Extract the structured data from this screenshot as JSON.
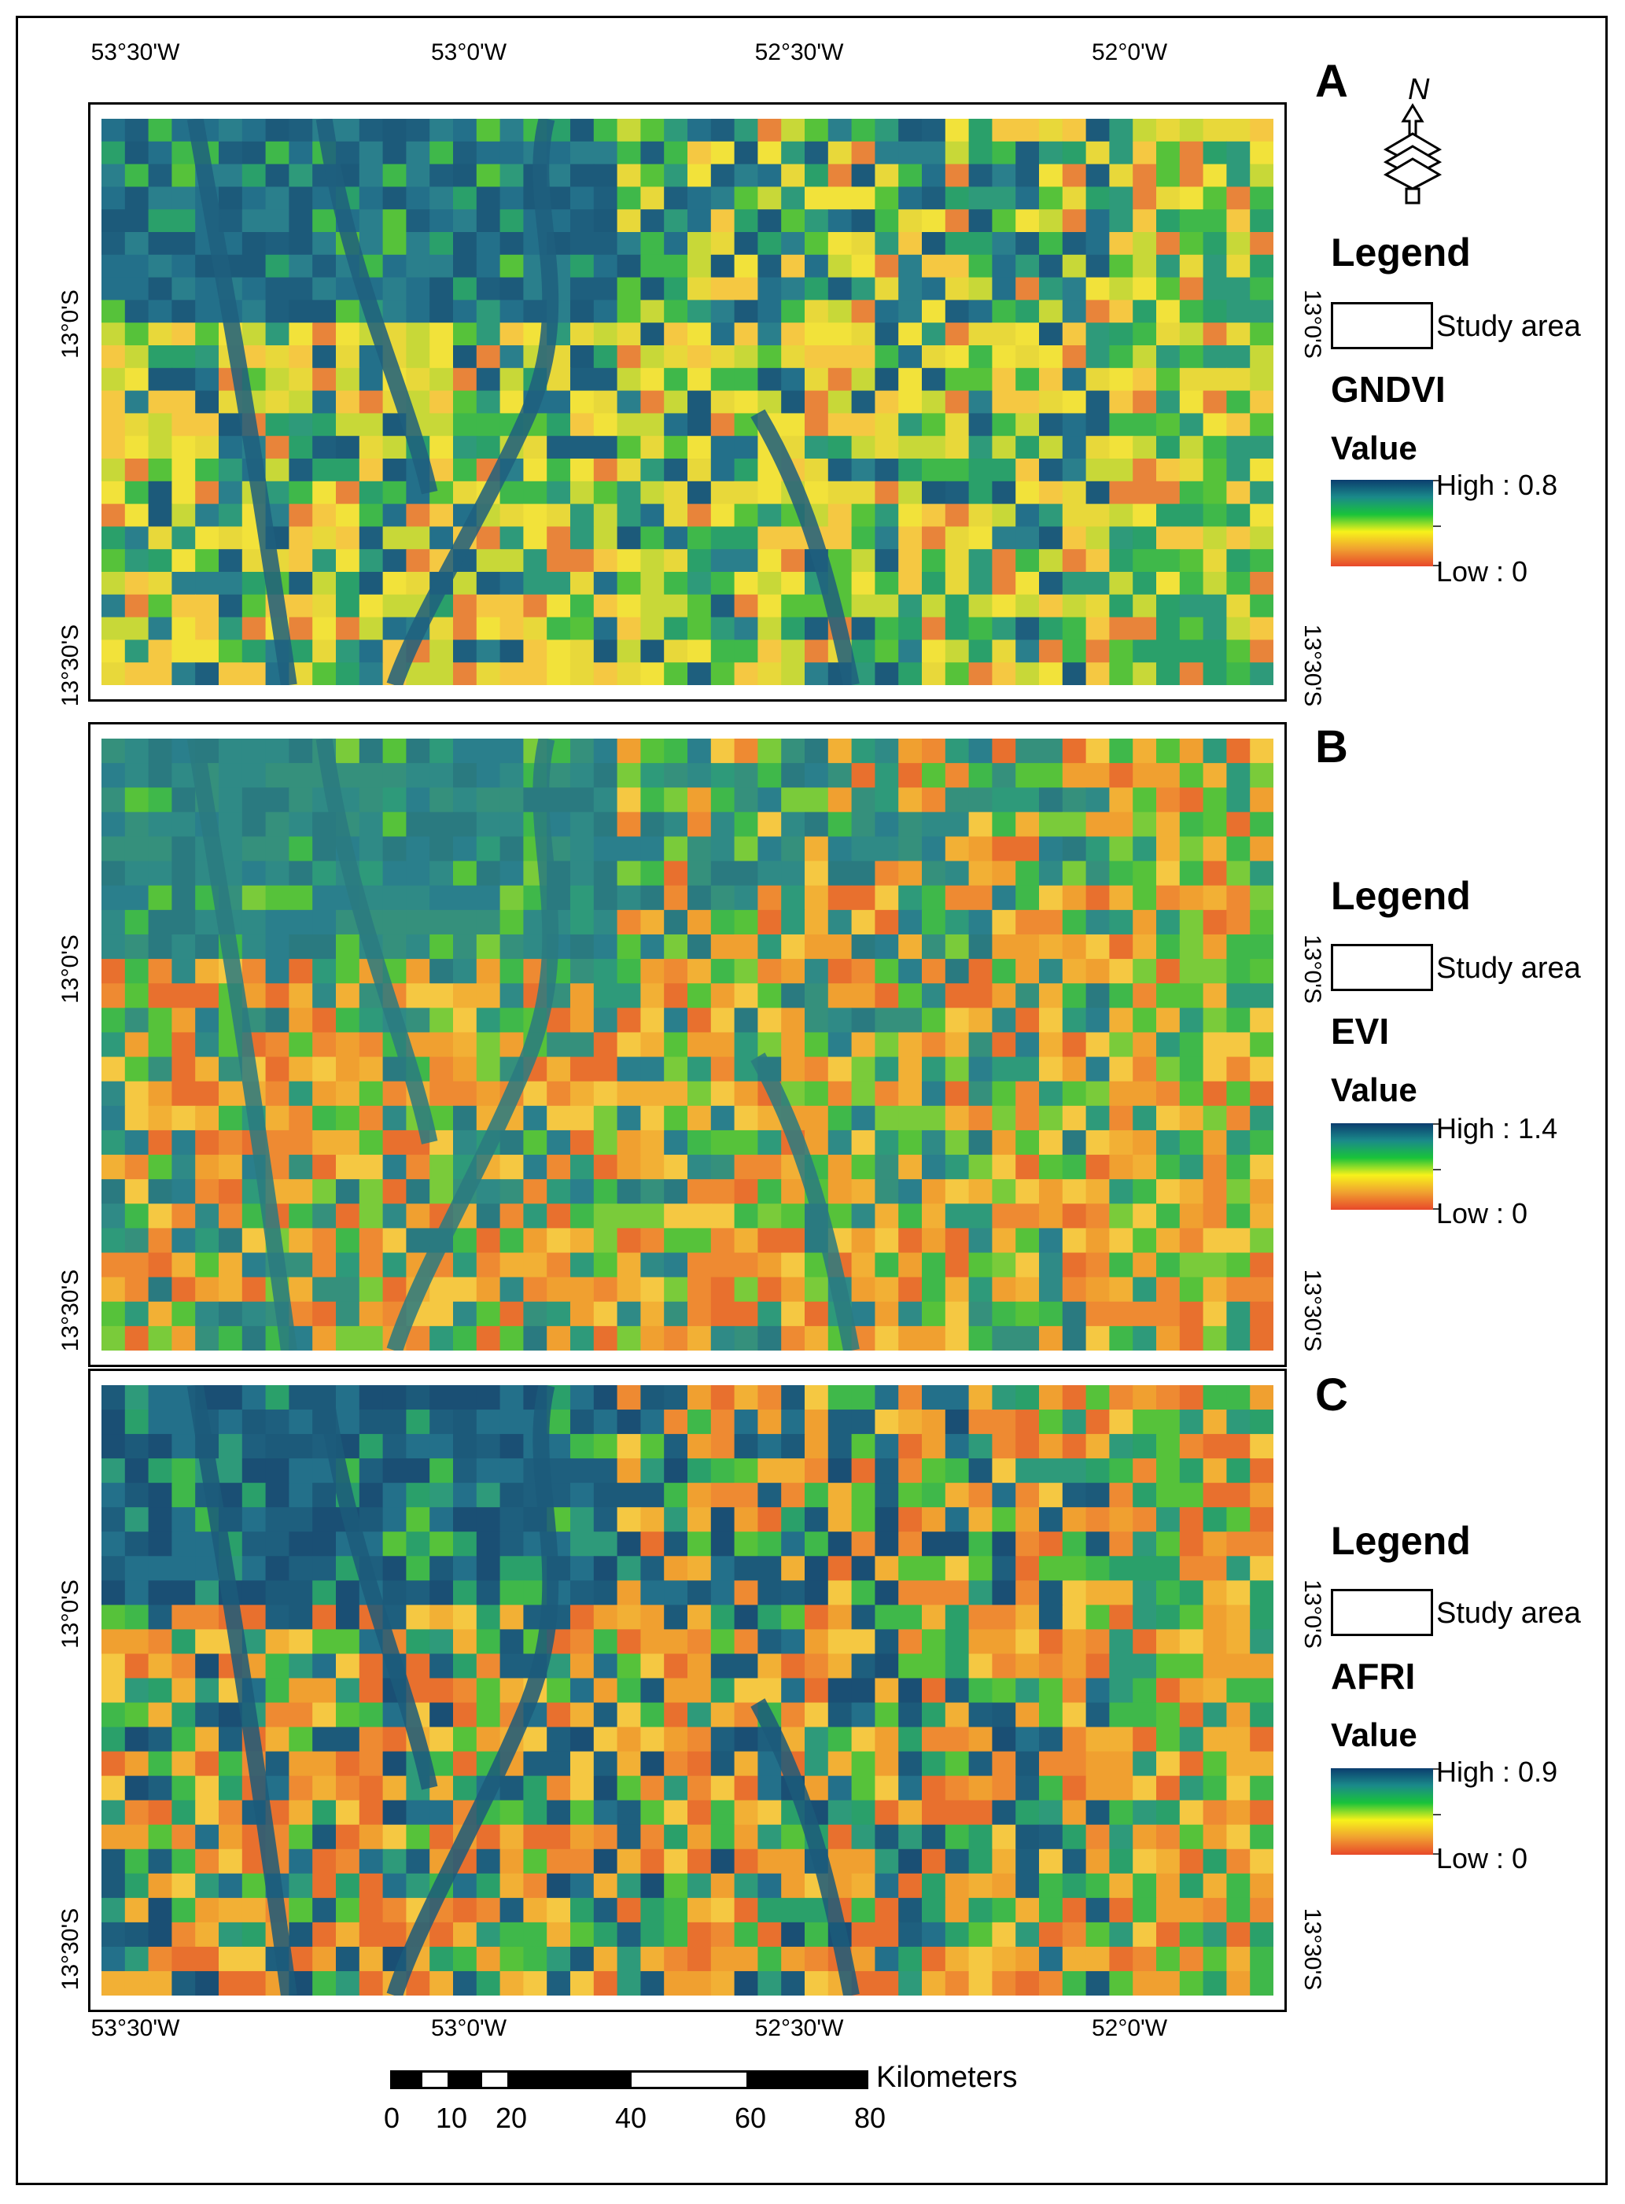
{
  "top_axis_labels": [
    "53°30'W",
    "53°0'W",
    "52°30'W",
    "52°0'W"
  ],
  "bottom_axis_labels": [
    "53°30'W",
    "53°0'W",
    "52°30'W",
    "52°0'W"
  ],
  "lat_labels": [
    "13°0'S",
    "13°30'S"
  ],
  "north_arrow": {
    "letter": "N",
    "icon": "north-arrow-icon"
  },
  "panels": [
    {
      "letter": "A",
      "legend_title": "Legend",
      "study_area_label": "Study area",
      "index_name": "GNDVI",
      "value_title": "Value",
      "high_label": "High : 0.8",
      "low_label": "Low : 0",
      "ramp_colors": [
        "#0b3d6e",
        "#1a8a8a",
        "#19c33a",
        "#f7f21a",
        "#f0a030",
        "#e8482a"
      ]
    },
    {
      "letter": "B",
      "legend_title": "Legend",
      "study_area_label": "Study area",
      "index_name": "EVI",
      "value_title": "Value",
      "high_label": "High : 1.4",
      "low_label": "Low : 0",
      "ramp_colors": [
        "#0b3d6e",
        "#1a8a8a",
        "#19c33a",
        "#f7f21a",
        "#f0a030",
        "#e8482a"
      ]
    },
    {
      "letter": "C",
      "legend_title": "Legend",
      "study_area_label": "Study area",
      "index_name": "AFRI",
      "value_title": "Value",
      "high_label": "High : 0.9",
      "low_label": "Low : 0",
      "ramp_colors": [
        "#0b3d6e",
        "#1a8a8a",
        "#19c33a",
        "#f7f21a",
        "#f0a030",
        "#e8482a"
      ]
    }
  ],
  "scale_bar": {
    "unit": "Kilometers",
    "labels": [
      "0",
      "10",
      "20",
      "40",
      "60",
      "80"
    ]
  }
}
